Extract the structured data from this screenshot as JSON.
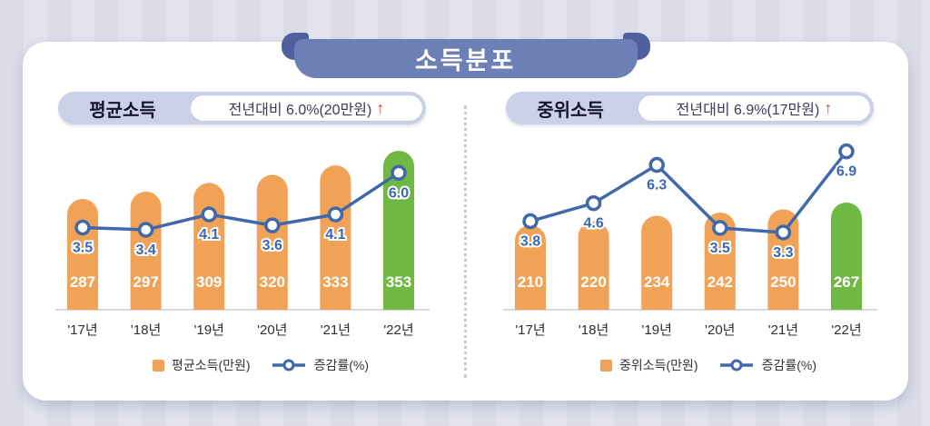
{
  "title": "소득분포",
  "colors": {
    "bar_orange": "#f0a356",
    "bar_green": "#6fb844",
    "line_blue": "#4168a9",
    "rate_label_blue": "#3a68b2",
    "bar_value_white": "#ffffff",
    "arrow_red": "#d9442b",
    "banner_blue": "#6d80b5",
    "banner_ear_blue": "#4e609d",
    "pill_lavender": "#cbd2e8",
    "background_lavender": "#dfe0ea",
    "baseline_gray": "#d8d8e0"
  },
  "chart_data": [
    {
      "type": "bar+line",
      "panel_label": "평균소득",
      "change_label": "전년대비 6.0%(20만원)",
      "arrow_glyph": "↑",
      "categories": [
        "'17년",
        "'18년",
        "'19년",
        "'20년",
        "'21년",
        "'22년"
      ],
      "series": [
        {
          "name": "평균소득(만원)",
          "type": "bar",
          "values": [
            287,
            297,
            309,
            320,
            333,
            353
          ]
        },
        {
          "name": "증감률(%)",
          "type": "line",
          "values": [
            3.5,
            3.4,
            4.1,
            3.6,
            4.1,
            6.0
          ]
        }
      ],
      "highlight_index": 5,
      "legend_position": "bottom",
      "grid": false
    },
    {
      "type": "bar+line",
      "panel_label": "중위소득",
      "change_label": "전년대비 6.9%(17만원)",
      "arrow_glyph": "↑",
      "categories": [
        "'17년",
        "'18년",
        "'19년",
        "'20년",
        "'21년",
        "'22년"
      ],
      "series": [
        {
          "name": "중위소득(만원)",
          "type": "bar",
          "values": [
            210,
            220,
            234,
            242,
            250,
            267
          ]
        },
        {
          "name": "증감률(%)",
          "type": "line",
          "values": [
            3.8,
            4.6,
            6.3,
            3.5,
            3.3,
            6.9
          ]
        }
      ],
      "highlight_index": 5,
      "legend_position": "bottom",
      "grid": false
    }
  ]
}
